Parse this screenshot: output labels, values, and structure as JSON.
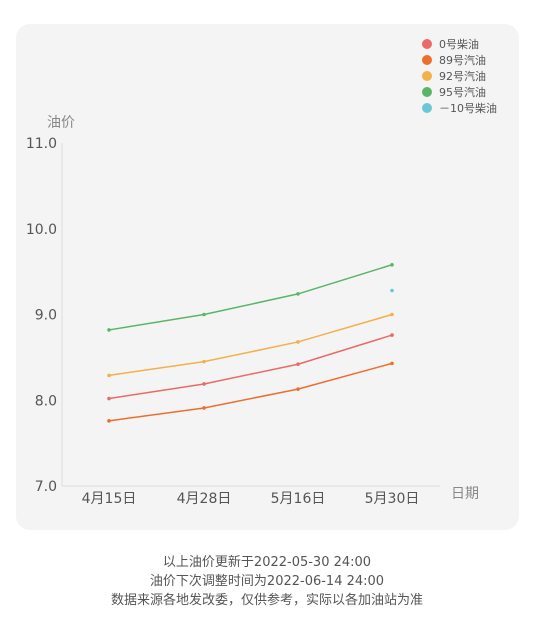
{
  "chart_data": {
    "type": "line",
    "ylabel": "油价",
    "xlabel": "日期",
    "categories": [
      "4月15日",
      "4月28日",
      "5月16日",
      "5月30日"
    ],
    "ylim": [
      7.0,
      11.0
    ],
    "yticks": [
      "7.0",
      "8.0",
      "9.0",
      "10.0",
      "11.0"
    ],
    "y_tick_values": [
      7.0,
      8.0,
      9.0,
      10.0,
      11.0
    ],
    "grid": false,
    "legend_position": "top-right",
    "series": [
      {
        "name": "0号柴油",
        "color": "#e96a66",
        "values": [
          8.02,
          8.19,
          8.42,
          8.76
        ]
      },
      {
        "name": "89号汽油",
        "color": "#ec6e2d",
        "values": [
          7.76,
          7.91,
          8.13,
          8.43
        ]
      },
      {
        "name": "92号汽油",
        "color": "#f4b04b",
        "values": [
          8.29,
          8.45,
          8.68,
          9.0
        ]
      },
      {
        "name": "95号汽油",
        "color": "#5ab569",
        "values": [
          8.82,
          9.0,
          9.24,
          9.58
        ]
      },
      {
        "name": "－10号柴油",
        "color": "#6ac8d6",
        "values": [
          null,
          null,
          null,
          9.28
        ]
      }
    ]
  },
  "footer": {
    "line1": "以上油价更新于2022-05-30 24:00",
    "line2": "油价下次调整时间为2022-06-14 24:00",
    "line3": "数据来源各地发改委，仅供参考，实际以各加油站为准"
  }
}
